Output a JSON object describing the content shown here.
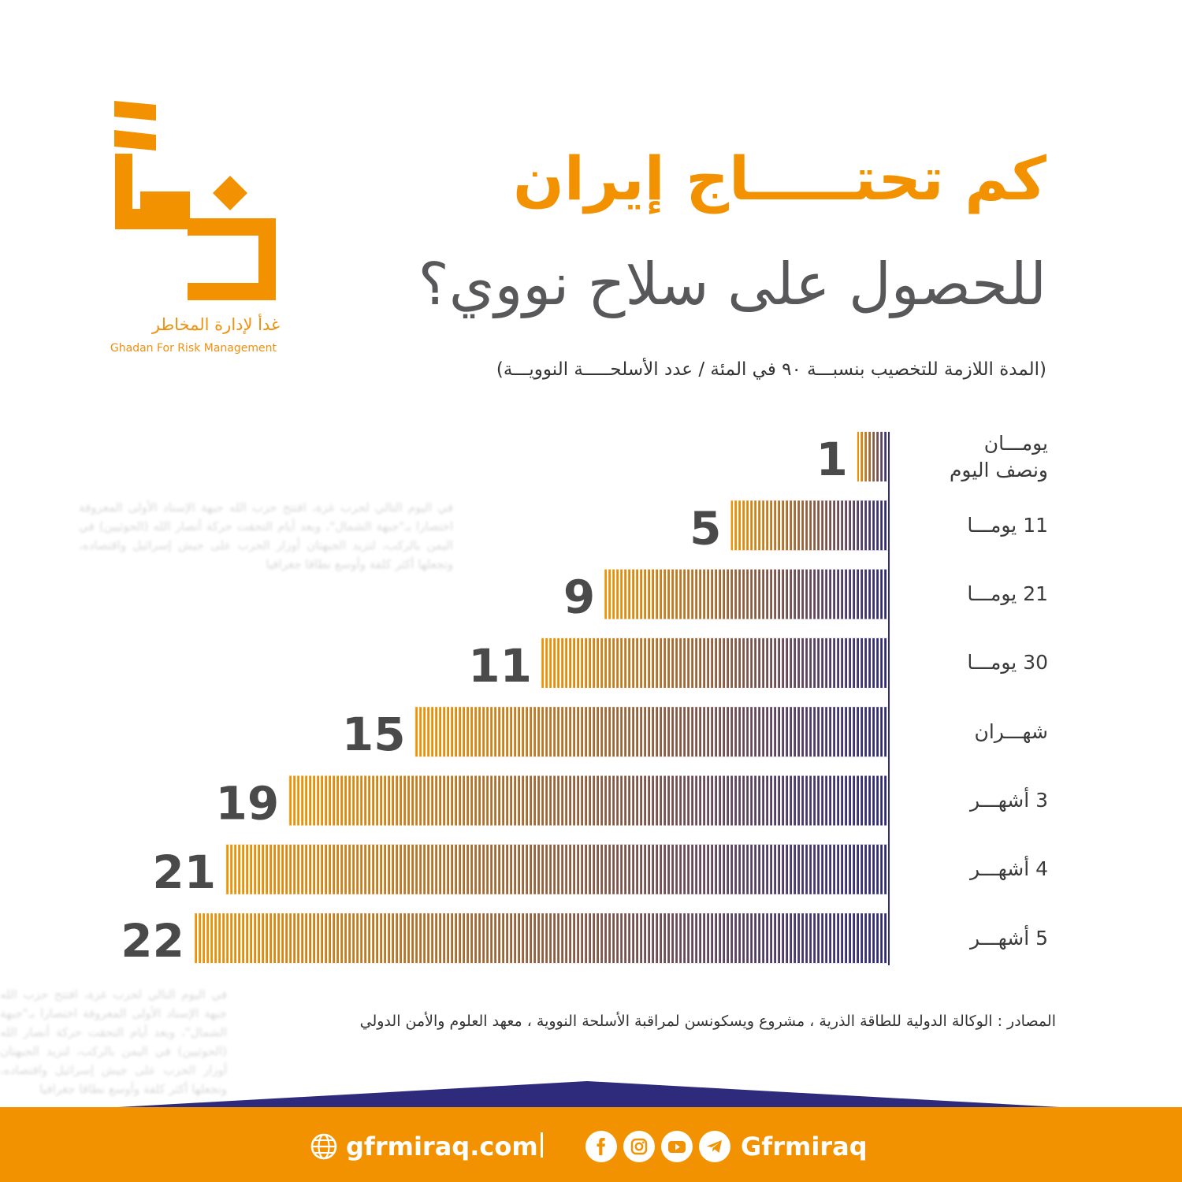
{
  "logo": {
    "name_ar": "غدأ لإدارة المخاطر",
    "name_en": "Ghadan For Risk Management",
    "color": "#f39200"
  },
  "chart_data": {
    "type": "bar",
    "orientation": "horizontal",
    "title": "كم تحتـــــاج إيران",
    "subtitle": "للحصول على سلاح نووي؟",
    "note": "(المدة اللازمة للتخصيب بنسبـــة ٩٠ في المئة / عدد الأسلحـــــة النوويـــة)",
    "categories": [
      "يومـــان ونصف اليوم",
      "11 يومـــا",
      "21 يومـــا",
      "30 يومـــا",
      "شهـــران",
      "3 أشهـــر",
      "4 أشهـــر",
      "5 أشهـــر"
    ],
    "values": [
      1,
      5,
      9,
      11,
      15,
      19,
      21,
      22
    ],
    "value_labels": [
      "1",
      "5",
      "9",
      "11",
      "15",
      "19",
      "21",
      "22"
    ],
    "xlim": [
      0,
      22
    ],
    "grid": false,
    "legend": "none",
    "gradient_colors": [
      "#f39200",
      "#2e2a7c"
    ]
  },
  "ghost_text": "في اليوم التالي لحرب غزة، افتتح حزب الله جبهة الإسناد الأولى المعروفة اختصارا بـ\"جبهة الشمال\"، وبعد أيام التحقت حركة أنصار الله (الحوثيين) في اليمن بالركب، لتزيد الجبهتان أوزار الحرب على جيش إسرائيل واقتصاده، وتجعلها أكثر كلفة وأوسع نطاقا جغرافيا",
  "sources": "المصادر : الوكالة الدولية للطاقة الذرية ، مشروع ويسكونسن لمراقبة الأسلحة النووية ، معهد العلوم والأمن الدولي",
  "footer": {
    "website": "gfrmiraq.com",
    "handle": "Gfrmiraq",
    "icons": [
      "facebook-icon",
      "instagram-icon",
      "youtube-icon",
      "telegram-icon"
    ]
  }
}
